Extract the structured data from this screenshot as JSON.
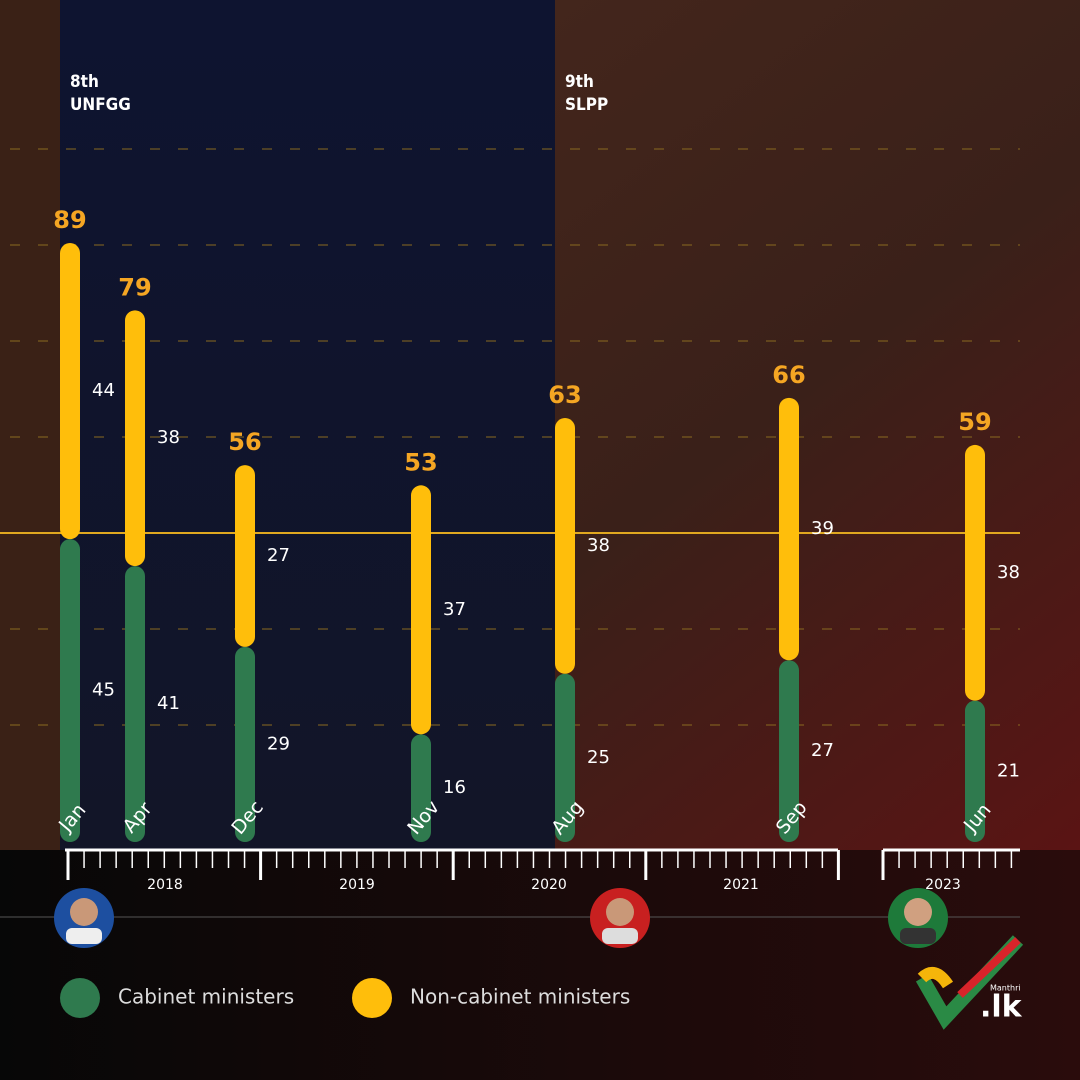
{
  "chart_data": {
    "type": "bar",
    "stacked": true,
    "categories": [
      "Jan",
      "Apr",
      "Dec",
      "Nov",
      "Aug",
      "Sep",
      "Jun"
    ],
    "series": [
      {
        "name": "Cabinet ministers",
        "color": "#2f7a4e",
        "values": [
          45,
          41,
          29,
          16,
          25,
          27,
          21
        ]
      },
      {
        "name": "Non-cabinet ministers",
        "color": "#ffbe0b",
        "values": [
          44,
          38,
          27,
          37,
          38,
          39,
          38
        ]
      }
    ],
    "totals": [
      89,
      79,
      56,
      53,
      63,
      66,
      59
    ],
    "ylim": [
      0,
      100
    ],
    "years": [
      "2018",
      "2019",
      "2020",
      "2021",
      "2023"
    ],
    "parliaments": [
      {
        "number": "8th",
        "party": "UNFGG"
      },
      {
        "number": "9th",
        "party": "SLPP"
      }
    ],
    "logo": {
      "small": "Manthri",
      "big": ".lk"
    }
  }
}
